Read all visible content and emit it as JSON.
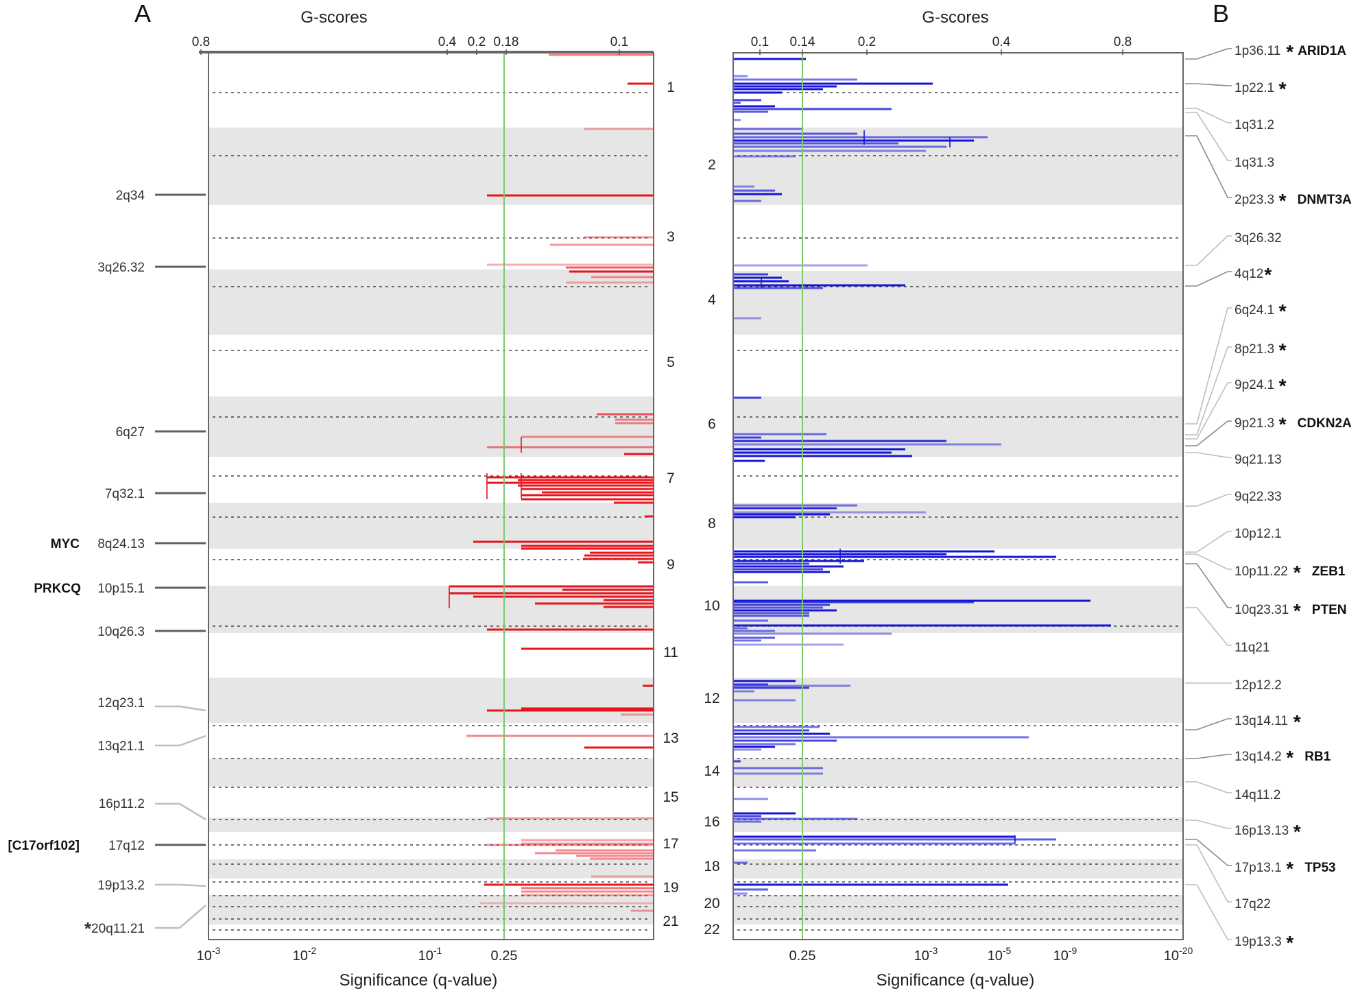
{
  "colors": {
    "amp": "#e8141c",
    "del": "#1515d8",
    "band": "#e6e6e6",
    "threshold": "#7cc86a",
    "axis": "#555555",
    "leader_dark": "#606060",
    "leader_light": "#bdbdbd"
  },
  "chart_data": [
    {
      "type": "genomic-segment-plot",
      "panel_label": "A",
      "alteration": "amplification",
      "title": "G-scores",
      "xlabel": "Significance (q-value)",
      "top_ticks": [
        "0.8",
        "0.4",
        "0.2",
        "0.18",
        "0.1"
      ],
      "top_tick_values": [
        0.8,
        0.4,
        0.2,
        0.18,
        0.1
      ],
      "bottom_ticks": [
        {
          "base": "10",
          "exp": "-3"
        },
        {
          "base": "10",
          "exp": "-2"
        },
        {
          "base": "10",
          "exp": "-1"
        },
        {
          "base": "0.25",
          "exp": ""
        }
      ],
      "threshold_q": 0.25,
      "chromosome_labels": [
        "1",
        "3",
        "5",
        "7",
        "9",
        "11",
        "13",
        "15",
        "17",
        "19",
        "21"
      ],
      "peaks": [
        {
          "cytoband": "2q34",
          "gene": "",
          "star": false
        },
        {
          "cytoband": "3q26.32",
          "gene": "",
          "star": false
        },
        {
          "cytoband": "6q27",
          "gene": "",
          "star": false
        },
        {
          "cytoband": "7q32.1",
          "gene": "",
          "star": false
        },
        {
          "cytoband": "8q24.13",
          "gene": "MYC",
          "star": false
        },
        {
          "cytoband": "10p15.1",
          "gene": "PRKCQ",
          "star": false
        },
        {
          "cytoband": "10q26.3",
          "gene": "",
          "star": false
        },
        {
          "cytoband": "12q23.1",
          "gene": "",
          "star": false
        },
        {
          "cytoband": "13q21.1",
          "gene": "",
          "star": false
        },
        {
          "cytoband": "16p11.2",
          "gene": "",
          "star": false
        },
        {
          "cytoband": "17q12",
          "gene": "[C17orf102]",
          "star": false
        },
        {
          "cytoband": "19p13.2",
          "gene": "",
          "star": false
        },
        {
          "cytoband": "20q11.21",
          "gene": "",
          "star": true
        }
      ]
    },
    {
      "type": "genomic-segment-plot",
      "panel_label": "B",
      "alteration": "deletion",
      "title": "G-scores",
      "xlabel": "Significance (q-value)",
      "top_ticks": [
        "0.1",
        "0.14",
        "0.2",
        "0.4",
        "0.8"
      ],
      "top_tick_values": [
        0.1,
        0.14,
        0.2,
        0.4,
        0.8
      ],
      "bottom_ticks": [
        {
          "base": "0.25",
          "exp": ""
        },
        {
          "base": "10",
          "exp": "-3"
        },
        {
          "base": "10",
          "exp": "-5"
        },
        {
          "base": "10",
          "exp": "-9"
        },
        {
          "base": "10",
          "exp": "-20"
        }
      ],
      "threshold_q": 0.25,
      "chromosome_labels": [
        "2",
        "4",
        "6",
        "8",
        "10",
        "12",
        "14",
        "16",
        "18",
        "20",
        "22"
      ],
      "peaks": [
        {
          "cytoband": "1p36.11",
          "gene": "ARID1A",
          "star": true
        },
        {
          "cytoband": "1p22.1",
          "gene": "",
          "star": true
        },
        {
          "cytoband": "1q31.2",
          "gene": "",
          "star": false
        },
        {
          "cytoband": "1q31.3",
          "gene": "",
          "star": false
        },
        {
          "cytoband": "2p23.3",
          "gene": "DNMT3A",
          "star": true
        },
        {
          "cytoband": "3q26.32",
          "gene": "",
          "star": false
        },
        {
          "cytoband": "4q12",
          "gene": "",
          "star": true
        },
        {
          "cytoband": "6q24.1",
          "gene": "",
          "star": true
        },
        {
          "cytoband": "8p21.3",
          "gene": "",
          "star": true
        },
        {
          "cytoband": "9p24.1",
          "gene": "",
          "star": true
        },
        {
          "cytoband": "9p21.3",
          "gene": "CDKN2A",
          "star": true
        },
        {
          "cytoband": "9q21.13",
          "gene": "",
          "star": false
        },
        {
          "cytoband": "9q22.33",
          "gene": "",
          "star": false
        },
        {
          "cytoband": "10p12.1",
          "gene": "",
          "star": false
        },
        {
          "cytoband": "10p11.22",
          "gene": "ZEB1",
          "star": true
        },
        {
          "cytoband": "10q23.31",
          "gene": "PTEN",
          "star": true
        },
        {
          "cytoband": "11q21",
          "gene": "",
          "star": false
        },
        {
          "cytoband": "12p12.2",
          "gene": "",
          "star": false
        },
        {
          "cytoband": "13q14.11",
          "gene": "",
          "star": true
        },
        {
          "cytoband": "13q14.2",
          "gene": "RB1",
          "star": true
        },
        {
          "cytoband": "14q11.2",
          "gene": "",
          "star": false
        },
        {
          "cytoband": "16p13.13",
          "gene": "",
          "star": true
        },
        {
          "cytoband": "17p13.1",
          "gene": "TP53",
          "star": true
        },
        {
          "cytoband": "17q22",
          "gene": "",
          "star": false
        },
        {
          "cytoband": "19p13.3",
          "gene": "",
          "star": true
        }
      ]
    }
  ]
}
